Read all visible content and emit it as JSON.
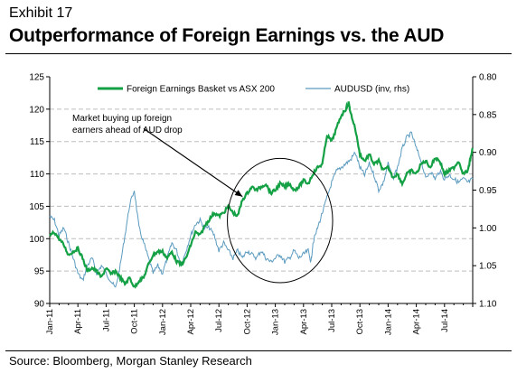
{
  "header": {
    "exhibit": "Exhibit 17",
    "title": "Outperformance of Foreign Earnings vs. the AUD"
  },
  "footer": {
    "source": "Source: Bloomberg, Morgan Stanley Research"
  },
  "colors": {
    "basket": "#14a044",
    "audusd": "#5b9bbf",
    "grid": "#bdbdbd",
    "axis": "#000000"
  },
  "chart_data": {
    "type": "line",
    "x_tick_labels": [
      "Jan-11",
      "Apr-11",
      "Jul-11",
      "Oct-11",
      "Jan-12",
      "Apr-12",
      "Jul-12",
      "Oct-12",
      "Jan-13",
      "Apr-13",
      "Jul-13",
      "Oct-13",
      "Jan-14",
      "Apr-14",
      "Jul-14"
    ],
    "x_range": [
      "Jan-11",
      "Sep-14"
    ],
    "y_left": {
      "range": [
        90,
        125
      ],
      "ticks": [
        90,
        95,
        100,
        105,
        110,
        115,
        120,
        125
      ]
    },
    "y_right": {
      "range": [
        0.8,
        1.1
      ],
      "inverted": true,
      "ticks": [
        "0.80",
        "0.85",
        "0.90",
        "0.95",
        "1.00",
        "1.05",
        "1.10"
      ]
    },
    "grid": "horizontal dashed",
    "legend_position": "top",
    "series": [
      {
        "name": "Foreign Earnings Basket vs ASX 200",
        "axis": "left",
        "points": [
          [
            0,
            100.5
          ],
          [
            0.5,
            101
          ],
          [
            1,
            100
          ],
          [
            1.5,
            99
          ],
          [
            2,
            97.5
          ],
          [
            2.5,
            98
          ],
          [
            3,
            98.5
          ],
          [
            3.5,
            97
          ],
          [
            4,
            95
          ],
          [
            4.5,
            95.5
          ],
          [
            5,
            95
          ],
          [
            5.5,
            94
          ],
          [
            6,
            95.5
          ],
          [
            6.5,
            94.5
          ],
          [
            7,
            95
          ],
          [
            7.5,
            94
          ],
          [
            8,
            93
          ],
          [
            8.5,
            94
          ],
          [
            9,
            92.5
          ],
          [
            9.5,
            93.5
          ],
          [
            10,
            94
          ],
          [
            10.5,
            96
          ],
          [
            11,
            97.5
          ],
          [
            11.5,
            98
          ],
          [
            12,
            98
          ],
          [
            12.5,
            97
          ],
          [
            13,
            98
          ],
          [
            13.5,
            96.5
          ],
          [
            14,
            96
          ],
          [
            14.5,
            97
          ],
          [
            15,
            99
          ],
          [
            15.5,
            101
          ],
          [
            16,
            100.5
          ],
          [
            16.5,
            102
          ],
          [
            17,
            103
          ],
          [
            17.5,
            104
          ],
          [
            18,
            103.5
          ],
          [
            18.5,
            104
          ],
          [
            19,
            105
          ],
          [
            19.5,
            104
          ],
          [
            20,
            103.5
          ],
          [
            20.5,
            106
          ],
          [
            21,
            107
          ],
          [
            21.5,
            108
          ],
          [
            22,
            107.5
          ],
          [
            22.5,
            108
          ],
          [
            23,
            108.5
          ],
          [
            23.5,
            107
          ],
          [
            24,
            107.5
          ],
          [
            24.5,
            108.5
          ],
          [
            25,
            108
          ],
          [
            25.5,
            108.5
          ],
          [
            26,
            107.5
          ],
          [
            26.5,
            108
          ],
          [
            27,
            109
          ],
          [
            27.5,
            108.5
          ],
          [
            28,
            110
          ],
          [
            28.5,
            111
          ],
          [
            29,
            111.5
          ],
          [
            29.5,
            116
          ],
          [
            30,
            115
          ],
          [
            30.5,
            117
          ],
          [
            31,
            119
          ],
          [
            31.5,
            120
          ],
          [
            31.8,
            121
          ],
          [
            32,
            119.5
          ],
          [
            32.5,
            117
          ],
          [
            33,
            113
          ],
          [
            33.5,
            112
          ],
          [
            34,
            113
          ],
          [
            34.5,
            111.5
          ],
          [
            35,
            112
          ],
          [
            35.5,
            110.5
          ],
          [
            36,
            111
          ],
          [
            36.5,
            109.5
          ],
          [
            37,
            110
          ],
          [
            37.5,
            108.5
          ],
          [
            38,
            110
          ],
          [
            38.5,
            110.5
          ],
          [
            39,
            110
          ],
          [
            39.5,
            111.5
          ],
          [
            40,
            112
          ],
          [
            40.5,
            111
          ],
          [
            41,
            112.5
          ],
          [
            41.5,
            112
          ],
          [
            42,
            110
          ],
          [
            42.5,
            110.5
          ],
          [
            43,
            111
          ],
          [
            43.5,
            112
          ],
          [
            44,
            110
          ],
          [
            44.5,
            110.5
          ],
          [
            44.7,
            112
          ],
          [
            45,
            114
          ]
        ]
      },
      {
        "name": "AUDUSD (inv, rhs)",
        "axis": "right",
        "points": [
          [
            0,
            0.985
          ],
          [
            0.5,
            0.99
          ],
          [
            1,
            1.01
          ],
          [
            1.5,
            1.0
          ],
          [
            2,
            1.02
          ],
          [
            2.5,
            1.04
          ],
          [
            3,
            1.06
          ],
          [
            3.5,
            1.07
          ],
          [
            4,
            1.05
          ],
          [
            4.5,
            1.04
          ],
          [
            5,
            1.06
          ],
          [
            5.5,
            1.05
          ],
          [
            6,
            1.06
          ],
          [
            6.5,
            1.07
          ],
          [
            7,
            1.08
          ],
          [
            7.5,
            1.05
          ],
          [
            8,
            1.01
          ],
          [
            8.5,
            0.97
          ],
          [
            9,
            0.95
          ],
          [
            9.5,
            1.0
          ],
          [
            10,
            1.02
          ],
          [
            10.5,
            1.04
          ],
          [
            11,
            1.06
          ],
          [
            11.5,
            1.05
          ],
          [
            12,
            1.06
          ],
          [
            12.5,
            1.04
          ],
          [
            13,
            1.02
          ],
          [
            13.5,
            1.03
          ],
          [
            14,
            1.05
          ],
          [
            14.5,
            1.03
          ],
          [
            15,
            1.01
          ],
          [
            15.5,
            0.995
          ],
          [
            16,
            0.99
          ],
          [
            16.5,
            1.0
          ],
          [
            17,
            1.0
          ],
          [
            17.5,
            1.01
          ],
          [
            18,
            1.03
          ],
          [
            18.5,
            1.02
          ],
          [
            19,
            1.03
          ],
          [
            19.5,
            1.04
          ],
          [
            20,
            1.03
          ],
          [
            20.5,
            1.04
          ],
          [
            21,
            1.03
          ],
          [
            21.5,
            1.035
          ],
          [
            22,
            1.04
          ],
          [
            22.5,
            1.03
          ],
          [
            23,
            1.04
          ],
          [
            23.5,
            1.045
          ],
          [
            24,
            1.04
          ],
          [
            24.5,
            1.035
          ],
          [
            25,
            1.045
          ],
          [
            25.5,
            1.04
          ],
          [
            26,
            1.03
          ],
          [
            26.5,
            1.04
          ],
          [
            27,
            1.035
          ],
          [
            27.5,
            1.03
          ],
          [
            27.8,
            1.045
          ],
          [
            28,
            1.02
          ],
          [
            28.5,
            1.0
          ],
          [
            29,
            0.98
          ],
          [
            29.5,
            0.96
          ],
          [
            30,
            0.94
          ],
          [
            30.5,
            0.925
          ],
          [
            31,
            0.92
          ],
          [
            31.5,
            0.915
          ],
          [
            32,
            0.91
          ],
          [
            32.5,
            0.9
          ],
          [
            33,
            0.92
          ],
          [
            33.5,
            0.93
          ],
          [
            34,
            0.915
          ],
          [
            34.5,
            0.93
          ],
          [
            35,
            0.95
          ],
          [
            35.5,
            0.94
          ],
          [
            36,
            0.915
          ],
          [
            36.5,
            0.935
          ],
          [
            37,
            0.92
          ],
          [
            37.5,
            0.895
          ],
          [
            38,
            0.88
          ],
          [
            38.5,
            0.875
          ],
          [
            39,
            0.895
          ],
          [
            39.5,
            0.91
          ],
          [
            40,
            0.935
          ],
          [
            40.5,
            0.925
          ],
          [
            41,
            0.935
          ],
          [
            41.5,
            0.925
          ],
          [
            42,
            0.935
          ],
          [
            42.5,
            0.93
          ],
          [
            43,
            0.935
          ],
          [
            43.5,
            0.94
          ],
          [
            44,
            0.935
          ],
          [
            44.5,
            0.94
          ],
          [
            45,
            0.935
          ]
        ]
      }
    ],
    "annotation": {
      "text_lines": [
        "Market buying up foreign",
        "earners ahead of AUD drop"
      ],
      "arrow_from": [
        10,
        117
      ],
      "arrow_to": [
        20.5,
        106.5
      ],
      "ellipse_center": [
        24.5,
        102.8
      ],
      "ellipse_radius_months": 5.6,
      "ellipse_radius_left_axis": 9.6
    }
  }
}
